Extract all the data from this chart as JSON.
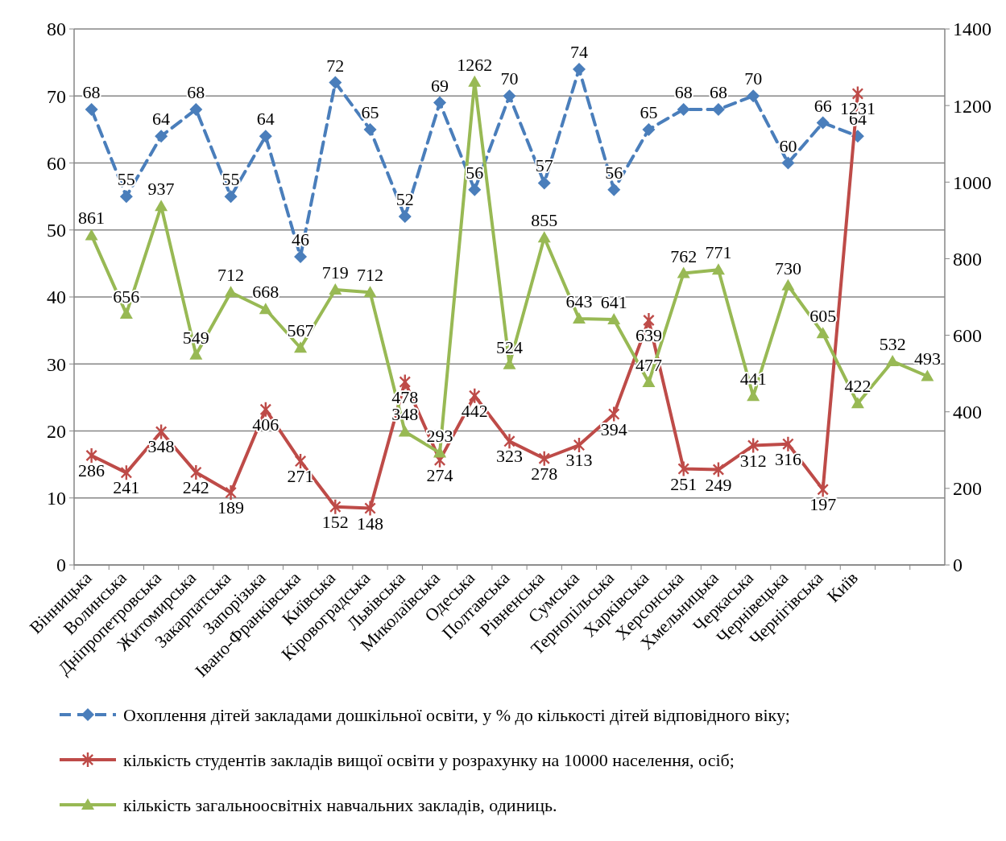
{
  "chart_data": {
    "type": "line",
    "categories": [
      "Вінницька",
      "Волинська",
      "Дніпропетровська",
      "Житомирська",
      "Закарпатська",
      "Запорізька",
      "Івано-Франківська",
      "Київська",
      "Кіровоградська",
      "Львівська",
      "Миколаївська",
      "Одеська",
      "Полтавська",
      "Рівненська",
      "Сумська",
      "Тернопільська",
      "Харківська",
      "Херсонська",
      "Хмельницька",
      "Черкаська",
      "Чернівецька",
      "Чернігівська",
      "Київ",
      null,
      null
    ],
    "ylim": [
      0,
      80
    ],
    "yticks": [
      0,
      10,
      20,
      30,
      40,
      50,
      60,
      70,
      80
    ],
    "y2lim": [
      0,
      1400
    ],
    "y2ticks": [
      0,
      200,
      400,
      600,
      800,
      1000,
      1200,
      1400
    ],
    "grid": "y",
    "legend": "bottom",
    "data_labels": true,
    "series": [
      {
        "name": "Охоплення дітей закладами дошкільної освіти, у % до кількості дітей відповідного віку;",
        "color": "#4a7ebb",
        "marker": "diamond",
        "line_style": "dashed",
        "values": [
          68,
          55,
          64,
          68,
          55,
          64,
          46,
          72,
          65,
          52,
          69,
          56,
          70,
          57,
          74,
          56,
          65,
          68,
          68,
          70,
          60,
          66,
          64,
          null,
          null
        ]
      },
      {
        "name": "кількість студентів закладів вищої освіти у розрахунку на 10000 населення, осіб;",
        "color": "#be4b48",
        "marker": "cross",
        "line_style": "solid",
        "axis": "y2",
        "values": [
          286,
          241,
          348,
          242,
          189,
          406,
          271,
          152,
          148,
          478,
          274,
          442,
          323,
          278,
          313,
          394,
          639,
          251,
          249,
          312,
          316,
          197,
          1231,
          null,
          null
        ]
      },
      {
        "name": "кількість загальноосвітніх навчальних закладів, одиниць.",
        "color": "#98b954",
        "marker": "triangle",
        "line_style": "solid",
        "axis": "y2",
        "values": [
          861,
          656,
          937,
          549,
          712,
          668,
          567,
          719,
          712,
          348,
          293,
          1262,
          524,
          855,
          643,
          641,
          477,
          762,
          771,
          441,
          730,
          605,
          422,
          532,
          493
        ]
      }
    ]
  }
}
